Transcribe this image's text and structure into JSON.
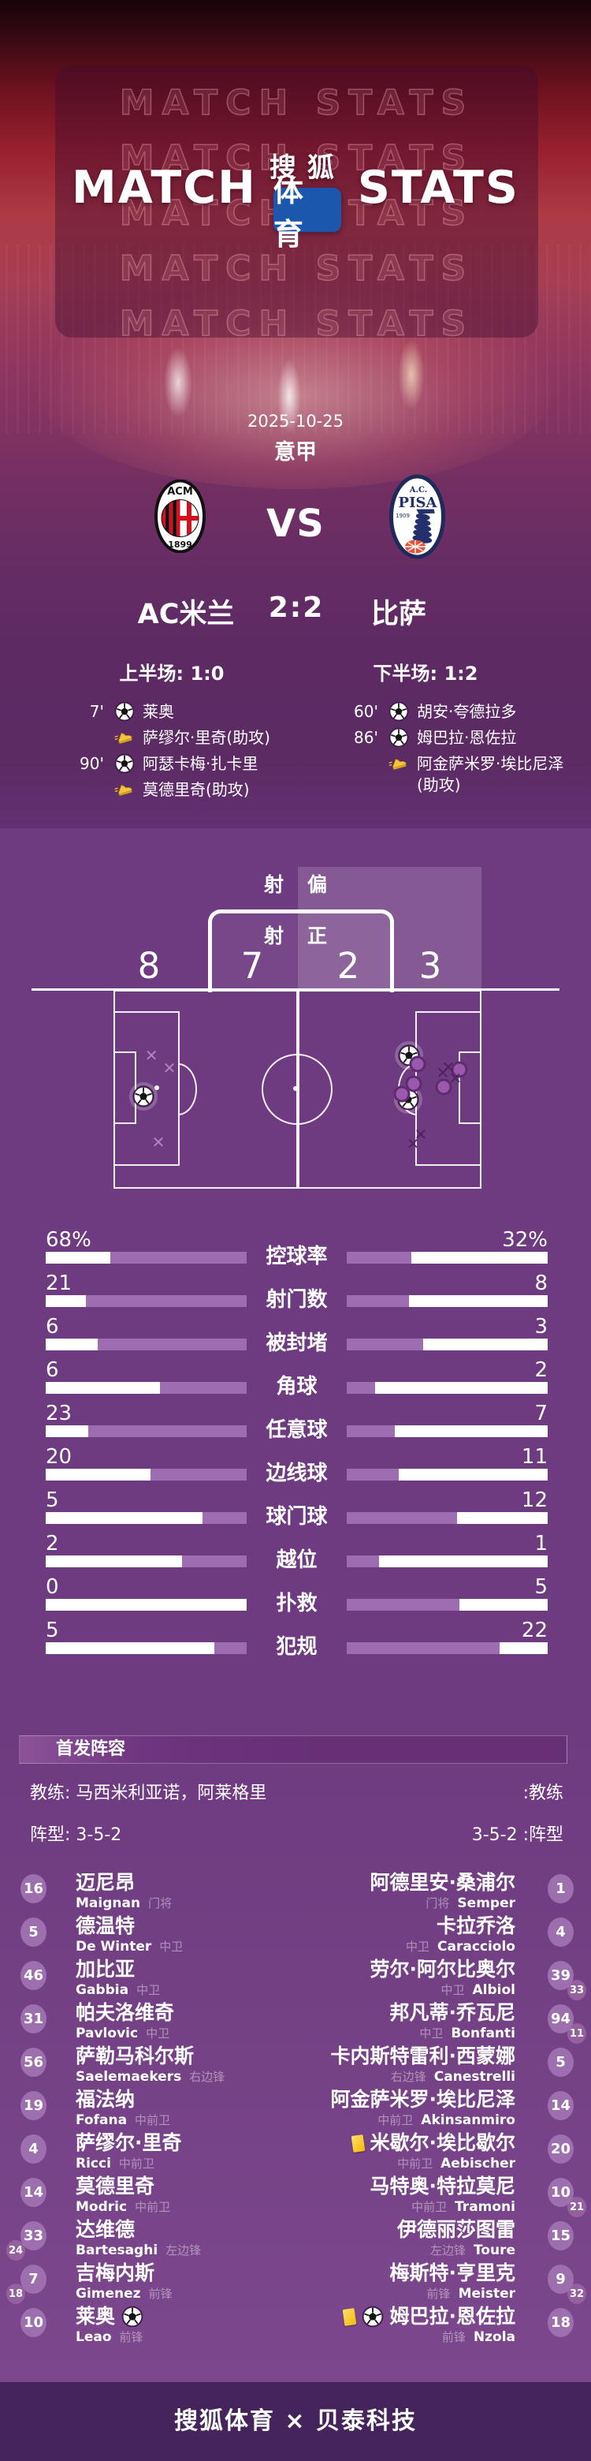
{
  "header": {
    "watermark": "MATCH STATS",
    "logo": {
      "left": "MATCH",
      "right": "STATS",
      "brand_top": "搜狐",
      "brand_box": "体育"
    }
  },
  "match": {
    "date": "2025-10-25",
    "league": "意甲",
    "vs": "VS",
    "score": "2:2",
    "home": {
      "name": "AC米兰",
      "badge_top": "ACM",
      "badge_year": "1899"
    },
    "away": {
      "name": "比萨",
      "badge_top": "A.C.",
      "badge_mid": "PISA",
      "badge_year": "1909"
    },
    "half1": "上半场: 1:0",
    "half2": "下半场: 1:2"
  },
  "events": {
    "home": [
      {
        "time": "7'",
        "icon": "goal",
        "text": "莱奥"
      },
      {
        "time": "",
        "icon": "assist",
        "text": "萨缪尔·里奇(助攻)"
      },
      {
        "time": "90'",
        "icon": "goal",
        "text": "阿瑟卡梅·扎卡里"
      },
      {
        "time": "",
        "icon": "assist",
        "text": "莫德里奇(助攻)"
      }
    ],
    "away": [
      {
        "time": "60'",
        "icon": "goal",
        "text": "胡安·夸德拉多"
      },
      {
        "time": "86'",
        "icon": "goal",
        "text": "姆巴拉·恩佐拉"
      },
      {
        "time": "",
        "icon": "assist",
        "text": "阿金萨米罗·埃比尼泽(助攻)"
      }
    ]
  },
  "shots": {
    "off_target_label": "射偏",
    "on_target_label": "射正",
    "home_off": 8,
    "home_on": 7,
    "away_on": 2,
    "away_off": 3,
    "markers": [
      {
        "type": "x",
        "side": "home",
        "x": 10.3,
        "y": 32.9
      },
      {
        "type": "x",
        "side": "home",
        "x": 15.2,
        "y": 39.3
      },
      {
        "type": "x",
        "side": "home",
        "x": 12.2,
        "y": 76.6
      },
      {
        "type": "goal",
        "side": "home",
        "x": 8.1,
        "y": 53.6
      },
      {
        "type": "goal",
        "side": "away",
        "x": 80.3,
        "y": 33.0
      },
      {
        "type": "goal",
        "side": "away",
        "x": 80.1,
        "y": 55.2
      },
      {
        "type": "dot",
        "side": "away",
        "x": 82.7,
        "y": 37.3
      },
      {
        "type": "dot",
        "side": "away",
        "x": 81.6,
        "y": 47.2
      },
      {
        "type": "dot",
        "side": "away",
        "x": 78.4,
        "y": 52.4
      },
      {
        "type": "dot",
        "side": "away",
        "x": 89.7,
        "y": 48.8
      },
      {
        "type": "dot",
        "side": "away",
        "x": 94.0,
        "y": 40.1
      },
      {
        "type": "x",
        "side": "away",
        "x": 89.5,
        "y": 41.7
      },
      {
        "type": "x",
        "side": "away",
        "x": 91.0,
        "y": 38.9
      },
      {
        "type": "x",
        "side": "away",
        "x": 92.9,
        "y": 44.4
      },
      {
        "type": "x",
        "side": "away",
        "x": 83.5,
        "y": 72.6
      },
      {
        "type": "x",
        "side": "away",
        "x": 81.4,
        "y": 77.4
      }
    ]
  },
  "chart_data": {
    "type": "bar",
    "orientation": "horizontal-paired",
    "categories": [
      "控球率",
      "射门数",
      "被封堵",
      "角球",
      "任意球",
      "边线球",
      "球门球",
      "越位",
      "扑救",
      "犯规"
    ],
    "series": [
      {
        "name": "AC米兰",
        "values": [
          68,
          21,
          6,
          6,
          23,
          20,
          5,
          2,
          0,
          5
        ]
      },
      {
        "name": "比萨",
        "values": [
          32,
          8,
          3,
          2,
          7,
          11,
          12,
          1,
          5,
          22
        ]
      }
    ],
    "display": {
      "home": [
        "68%",
        "21",
        "6",
        "6",
        "23",
        "20",
        "5",
        "2",
        "0",
        "5"
      ],
      "away": [
        "32%",
        "8",
        "3",
        "2",
        "7",
        "11",
        "12",
        "1",
        "5",
        "22"
      ]
    },
    "fill_pct": {
      "home": [
        68,
        80,
        74,
        43,
        79,
        48,
        22,
        32,
        0,
        16
      ],
      "away": [
        32,
        31,
        38,
        14,
        24,
        26,
        55,
        16,
        56,
        76
      ]
    },
    "bar_colors": {
      "fill": "#9e6cb0",
      "rest": "#ffffff"
    }
  },
  "lineup": {
    "title": "首发阵容",
    "home_coach_text": "教练: 马西米利亚诺，阿莱格里",
    "away_coach_text": ":教练",
    "home_formation_text": "阵型: 3-5-2",
    "away_formation_text": "3-5-2 :阵型",
    "home_players": [
      {
        "number": "16",
        "name": "迈尼昂",
        "en": "Maignan",
        "pos": "门将"
      },
      {
        "number": "5",
        "name": "德温特",
        "en": "De Winter",
        "pos": "中卫"
      },
      {
        "number": "46",
        "name": "加比亚",
        "en": "Gabbia",
        "pos": "中卫"
      },
      {
        "number": "31",
        "name": "帕夫洛维奇",
        "en": "Pavlovic",
        "pos": "中卫"
      },
      {
        "number": "56",
        "name": "萨勒马科尔斯",
        "en": "Saelemaekers",
        "pos": "右边锋"
      },
      {
        "number": "19",
        "name": "福法纳",
        "en": "Fofana",
        "pos": "中前卫"
      },
      {
        "number": "4",
        "name": "萨缪尔·里奇",
        "en": "Ricci",
        "pos": "中前卫"
      },
      {
        "number": "14",
        "name": "莫德里奇",
        "en": "Modric",
        "pos": "中前卫"
      },
      {
        "number": "33",
        "sub": "24",
        "name": "达维德",
        "en": "Bartesaghi",
        "pos": "左边锋"
      },
      {
        "number": "7",
        "sub": "18",
        "name": "吉梅内斯",
        "en": "Gimenez",
        "pos": "前锋"
      },
      {
        "number": "10",
        "name": "莱奥",
        "en": "Leao",
        "pos": "前锋",
        "icons": [
          "goal"
        ]
      }
    ],
    "away_players": [
      {
        "number": "1",
        "name": "阿德里安·桑浦尔",
        "en": "Semper",
        "pos": "门将"
      },
      {
        "number": "4",
        "name": "卡拉乔洛",
        "en": "Caracciolo",
        "pos": "中卫"
      },
      {
        "number": "39",
        "sub": "33",
        "name": "劳尔·阿尔比奥尔",
        "en": "Albiol",
        "pos": "中卫"
      },
      {
        "number": "94",
        "sub": "11",
        "name": "邦凡蒂·乔瓦尼",
        "en": "Bonfanti",
        "pos": "中卫"
      },
      {
        "number": "5",
        "name": "卡内斯特雷利·西蒙娜",
        "en": "Canestrelli",
        "pos": "右边锋"
      },
      {
        "number": "14",
        "name": "阿金萨米罗·埃比尼泽",
        "en": "Akinsanmiro",
        "pos": "中前卫"
      },
      {
        "number": "20",
        "name": "米歇尔·埃比歇尔",
        "en": "Aebischer",
        "pos": "中前卫",
        "icons": [
          "yellow"
        ]
      },
      {
        "number": "10",
        "sub": "21",
        "name": "马特奥·特拉莫尼",
        "en": "Tramoni",
        "pos": "中前卫"
      },
      {
        "number": "15",
        "name": "伊德丽莎图雷",
        "en": "Toure",
        "pos": "左边锋"
      },
      {
        "number": "9",
        "sub": "32",
        "name": "梅斯特·亨里克",
        "en": "Meister",
        "pos": "前锋"
      },
      {
        "number": "18",
        "name": "姆巴拉·恩佐拉",
        "en": "Nzola",
        "pos": "前锋",
        "icons": [
          "yellow",
          "goal"
        ]
      }
    ]
  },
  "footer": {
    "text": "搜狐体育 × 贝泰科技"
  },
  "colors": {
    "section_purple": "#6e3a80",
    "bar_fill": "#9e6cb0",
    "footer_bg": "#44245a",
    "brand_blue": "#1c57ae",
    "card_yellow": "#f2b807"
  }
}
